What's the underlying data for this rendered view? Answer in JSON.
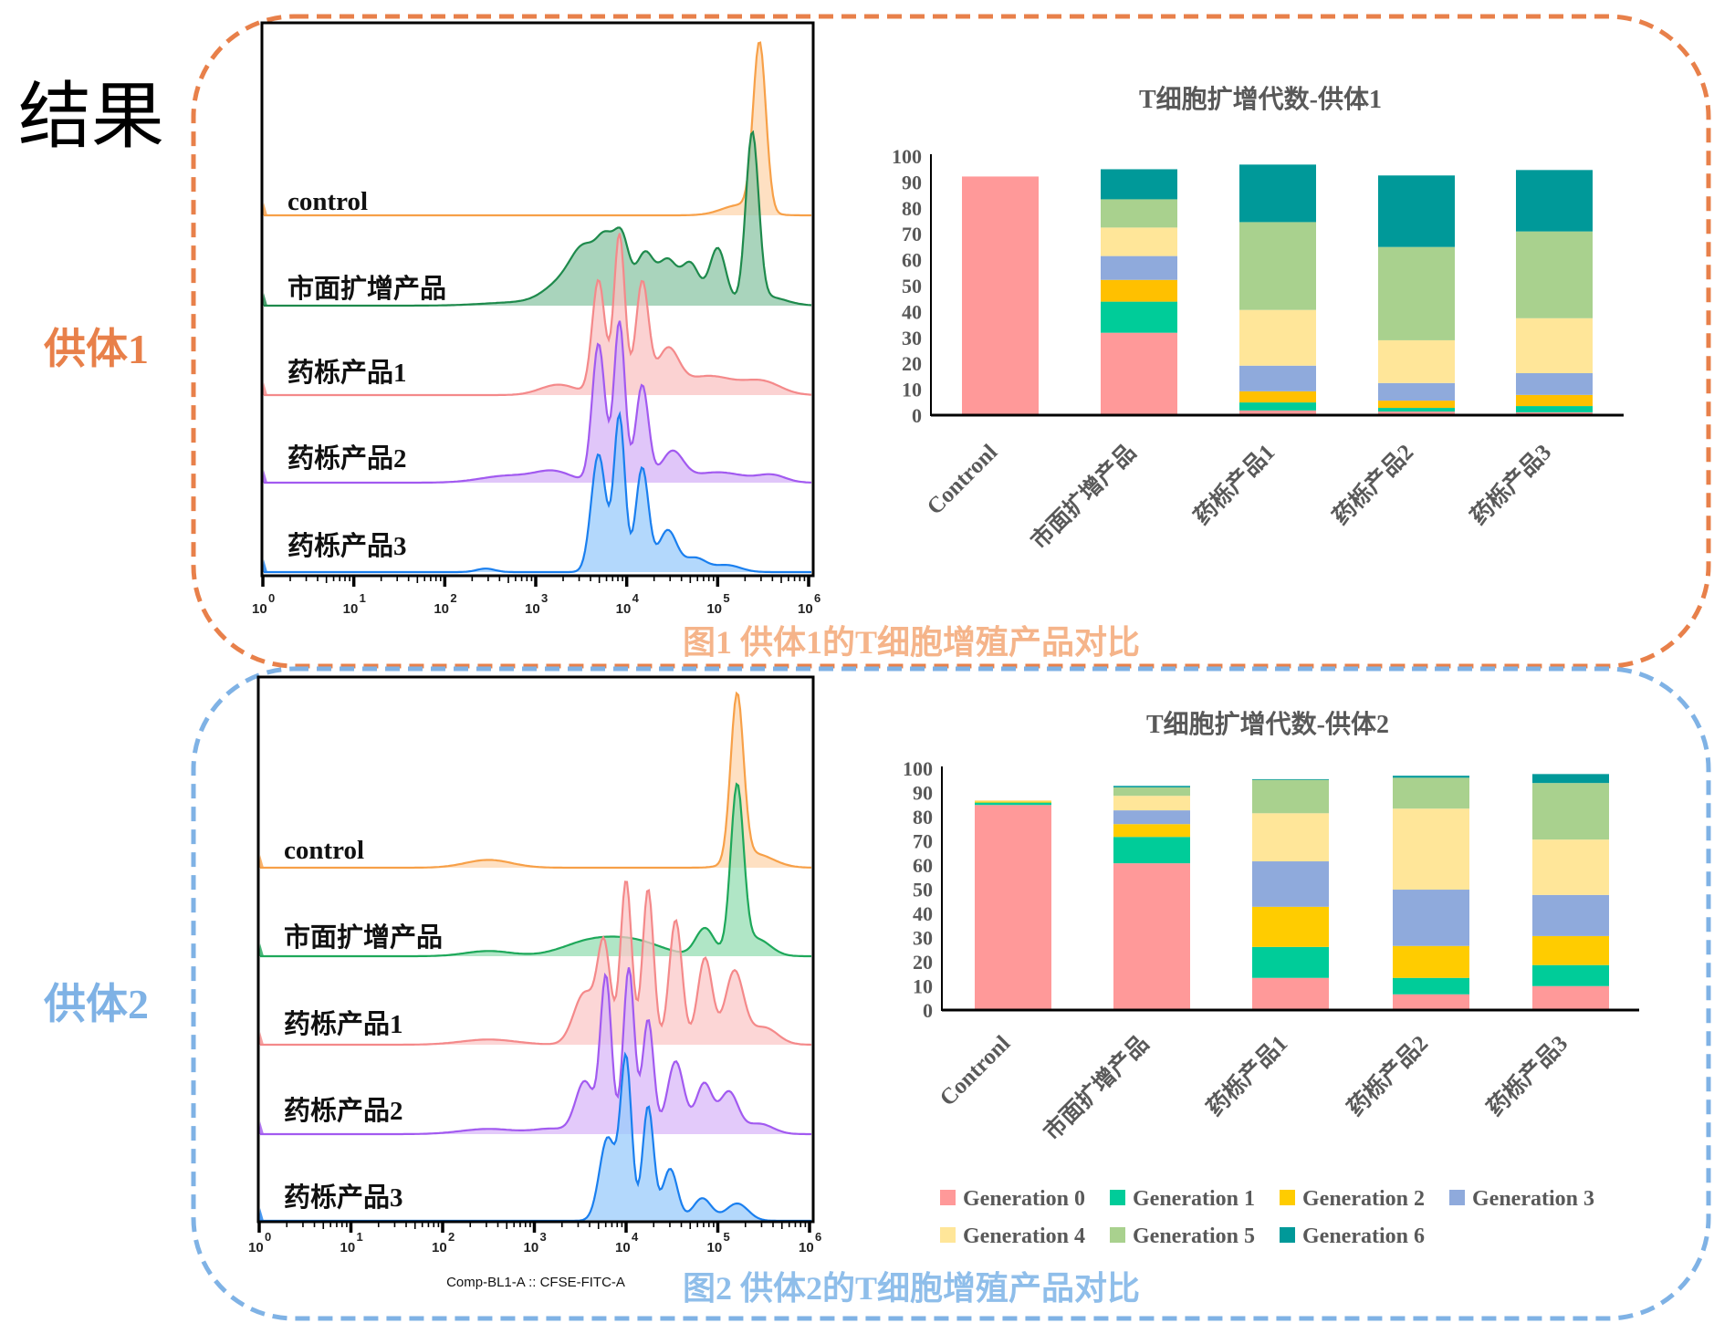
{
  "page": {
    "title": "结果",
    "donor1_label": "供体1",
    "donor2_label": "供体2",
    "caption1": "图1  供体1的T细胞增殖产品对比",
    "caption2": "图2  供体2的T细胞增殖产品对比",
    "colors": {
      "donor1_border": "#E8804A",
      "donor2_border": "#7FB2E5",
      "caption1": "#F5B48A",
      "caption2": "#8FBEEA"
    }
  },
  "chart_data": [
    {
      "id": "histogram-donor1",
      "type": "area",
      "title": "",
      "xlabel": "",
      "x_scale": "log10",
      "xlim": [
        0,
        6
      ],
      "x_tick_labels": [
        [
          "10",
          "0"
        ],
        [
          "10",
          "1"
        ],
        [
          "10",
          "2"
        ],
        [
          "10",
          "3"
        ],
        [
          "10",
          "4"
        ],
        [
          "10",
          "5"
        ],
        [
          "10",
          "6"
        ]
      ],
      "note": "Offset (stacked) CFSE histograms; peaks given as [log10 center, relative height, width in decades]",
      "series": [
        {
          "name": "control",
          "color": "#F7A048",
          "fill": "#FDD5AE",
          "peaks": [
            [
              5.46,
              0.97,
              0.07
            ],
            [
              5.25,
              0.06,
              0.2
            ]
          ]
        },
        {
          "name": "市面扩增产品",
          "color": "#1E8A4C",
          "fill": "#8CC5A5",
          "peaks": [
            [
              2.85,
              0.02,
              0.4
            ],
            [
              3.3,
              0.12,
              0.2
            ],
            [
              3.55,
              0.28,
              0.15
            ],
            [
              3.78,
              0.3,
              0.1
            ],
            [
              3.95,
              0.34,
              0.08
            ],
            [
              4.2,
              0.3,
              0.1
            ],
            [
              4.45,
              0.25,
              0.1
            ],
            [
              4.7,
              0.24,
              0.1
            ],
            [
              5.0,
              0.33,
              0.09
            ],
            [
              5.38,
              0.97,
              0.07
            ],
            [
              5.55,
              0.05,
              0.2
            ]
          ]
        },
        {
          "name": "药栎产品1",
          "color": "#F4898A",
          "fill": "#F9C3C3",
          "peaks": [
            [
              3.25,
              0.06,
              0.2
            ],
            [
              3.69,
              0.66,
              0.07
            ],
            [
              3.92,
              0.93,
              0.06
            ],
            [
              4.17,
              0.64,
              0.07
            ],
            [
              4.45,
              0.24,
              0.12
            ],
            [
              4.9,
              0.11,
              0.3
            ],
            [
              5.5,
              0.07,
              0.2
            ]
          ]
        },
        {
          "name": "药栎产品2",
          "color": "#A25AF0",
          "fill": "#D5B3F7",
          "peaks": [
            [
              2.7,
              0.04,
              0.3
            ],
            [
              3.2,
              0.06,
              0.2
            ],
            [
              3.69,
              0.8,
              0.07
            ],
            [
              3.92,
              0.93,
              0.06
            ],
            [
              4.17,
              0.56,
              0.07
            ],
            [
              4.5,
              0.17,
              0.12
            ],
            [
              5.0,
              0.06,
              0.3
            ],
            [
              5.6,
              0.04,
              0.15
            ]
          ]
        },
        {
          "name": "药栎产品3",
          "color": "#1A7FEF",
          "fill": "#9ACBFB",
          "peaks": [
            [
              2.45,
              0.02,
              0.1
            ],
            [
              3.69,
              0.68,
              0.08
            ],
            [
              3.92,
              0.9,
              0.06
            ],
            [
              4.17,
              0.6,
              0.07
            ],
            [
              4.45,
              0.24,
              0.1
            ],
            [
              4.75,
              0.08,
              0.12
            ],
            [
              5.1,
              0.04,
              0.15
            ]
          ]
        }
      ]
    },
    {
      "id": "histogram-donor2",
      "type": "area",
      "title": "",
      "xlabel": "Comp-BL1-A :: CFSE-FITC-A",
      "x_scale": "log10",
      "xlim": [
        0,
        6
      ],
      "x_tick_labels": [
        [
          "10",
          "0"
        ],
        [
          "10",
          "1"
        ],
        [
          "10",
          "2"
        ],
        [
          "10",
          "3"
        ],
        [
          "10",
          "4"
        ],
        [
          "10",
          "5"
        ],
        [
          "10",
          "6"
        ]
      ],
      "note": "Offset (stacked) CFSE histograms; peaks given as [log10 center, relative height, width in decades]",
      "series": [
        {
          "name": "control",
          "color": "#F7A048",
          "fill": "#FDD5AE",
          "peaks": [
            [
              2.5,
              0.045,
              0.25
            ],
            [
              5.21,
              0.96,
              0.07
            ],
            [
              5.4,
              0.08,
              0.2
            ]
          ]
        },
        {
          "name": "市面扩增产品",
          "color": "#1EA85A",
          "fill": "#95DDB3",
          "peaks": [
            [
              2.5,
              0.03,
              0.25
            ],
            [
              3.6,
              0.08,
              0.3
            ],
            [
              4.1,
              0.08,
              0.3
            ],
            [
              4.86,
              0.16,
              0.1
            ],
            [
              5.21,
              0.96,
              0.07
            ],
            [
              5.42,
              0.1,
              0.15
            ]
          ]
        },
        {
          "name": "药栎产品1",
          "color": "#F4898A",
          "fill": "#FBC8C8",
          "peaks": [
            [
              2.5,
              0.03,
              0.3
            ],
            [
              3.55,
              0.3,
              0.12
            ],
            [
              3.76,
              0.55,
              0.07
            ],
            [
              4.0,
              0.95,
              0.06
            ],
            [
              4.24,
              0.9,
              0.06
            ],
            [
              4.54,
              0.72,
              0.07
            ],
            [
              4.86,
              0.5,
              0.08
            ],
            [
              5.18,
              0.42,
              0.1
            ],
            [
              5.5,
              0.1,
              0.15
            ]
          ]
        },
        {
          "name": "药栎产品2",
          "color": "#A25AF0",
          "fill": "#D9B8F8",
          "peaks": [
            [
              2.5,
              0.03,
              0.3
            ],
            [
              3.2,
              0.03,
              0.2
            ],
            [
              3.55,
              0.3,
              0.1
            ],
            [
              3.78,
              0.9,
              0.06
            ],
            [
              4.03,
              0.96,
              0.06
            ],
            [
              4.24,
              0.66,
              0.06
            ],
            [
              4.54,
              0.42,
              0.09
            ],
            [
              4.85,
              0.29,
              0.09
            ],
            [
              5.12,
              0.24,
              0.1
            ],
            [
              5.45,
              0.06,
              0.15
            ]
          ]
        },
        {
          "name": "药栎产品3",
          "color": "#1A7FEF",
          "fill": "#9ACBFB",
          "peaks": [
            [
              3.8,
              0.48,
              0.09
            ],
            [
              4.0,
              0.92,
              0.06
            ],
            [
              4.24,
              0.66,
              0.06
            ],
            [
              4.48,
              0.3,
              0.08
            ],
            [
              4.83,
              0.13,
              0.1
            ],
            [
              5.21,
              0.1,
              0.12
            ]
          ]
        }
      ]
    },
    {
      "id": "bar-donor1",
      "type": "bar",
      "stacked": true,
      "title": "T细胞扩增代数-供体1",
      "xlabel": "",
      "ylabel": "",
      "ylim": [
        0,
        100
      ],
      "yticks": [
        0,
        10,
        20,
        30,
        40,
        50,
        60,
        70,
        80,
        90,
        100
      ],
      "categories": [
        "Contronl",
        "市面扩增产品",
        "药栎产品1",
        "药栎产品2",
        "药栎产品3"
      ],
      "series": [
        {
          "name": "Generation 0",
          "color": "#FF9999",
          "values": [
            92.1,
            31.8,
            1.8,
            1.4,
            1.1
          ]
        },
        {
          "name": "Generation 1",
          "color": "#00CC99",
          "values": [
            0,
            12.0,
            3.1,
            1.4,
            2.4
          ]
        },
        {
          "name": "Generation 2",
          "color": "#FFC000",
          "values": [
            0,
            8.4,
            4.3,
            2.8,
            4.3
          ]
        },
        {
          "name": "Generation 3",
          "color": "#8FAADC",
          "values": [
            0,
            9.2,
            9.9,
            6.8,
            8.4
          ]
        },
        {
          "name": "Generation 4",
          "color": "#FFE699",
          "values": [
            0,
            11.0,
            21.5,
            16.5,
            21.2
          ]
        },
        {
          "name": "Generation 5",
          "color": "#A9D18E",
          "values": [
            0,
            10.9,
            33.9,
            36.0,
            33.5
          ]
        },
        {
          "name": "Generation 6",
          "color": "#009999",
          "values": [
            0,
            11.6,
            22.2,
            27.6,
            23.7
          ]
        }
      ],
      "legend": "none"
    },
    {
      "id": "bar-donor2",
      "type": "bar",
      "stacked": true,
      "title": "T细胞扩增代数-供体2",
      "xlabel": "",
      "ylabel": "",
      "ylim": [
        0,
        100
      ],
      "yticks": [
        0,
        10,
        20,
        30,
        40,
        50,
        60,
        70,
        80,
        90,
        100
      ],
      "categories": [
        "Contronl",
        "市面扩增产品",
        "药栎产品1",
        "药栎产品2",
        "药栎产品3"
      ],
      "series": [
        {
          "name": "Generation 0",
          "color": "#FF9999",
          "values": [
            84.8,
            60.7,
            13.3,
            6.5,
            9.9
          ]
        },
        {
          "name": "Generation 1",
          "color": "#00CC99",
          "values": [
            1.0,
            10.9,
            12.8,
            6.8,
            8.7
          ]
        },
        {
          "name": "Generation 2",
          "color": "#FFCC00",
          "values": [
            0.5,
            5.3,
            16.6,
            13.2,
            12.0
          ]
        },
        {
          "name": "Generation 3",
          "color": "#8FAADC",
          "values": [
            0,
            5.7,
            18.8,
            23.3,
            17.0
          ]
        },
        {
          "name": "Generation 4",
          "color": "#FFE699",
          "values": [
            0.5,
            6.0,
            19.9,
            33.5,
            22.9
          ]
        },
        {
          "name": "Generation 5",
          "color": "#A9D18E",
          "values": [
            0,
            3.5,
            13.8,
            12.8,
            23.4
          ]
        },
        {
          "name": "Generation 6",
          "color": "#009999",
          "values": [
            0,
            0.6,
            0.3,
            0.8,
            3.7
          ]
        }
      ],
      "legend": "bottom"
    }
  ]
}
